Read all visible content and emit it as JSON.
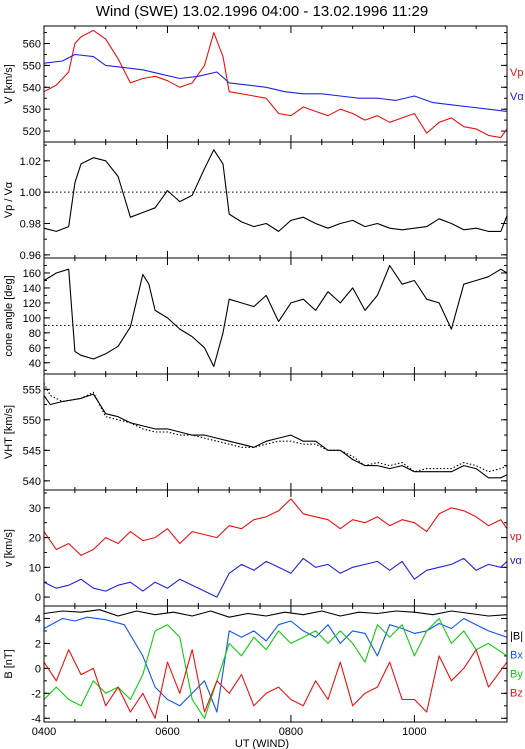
{
  "title": "Wind (SWE)    13.02.1996   04:00 - 13.02.1996   11:29",
  "xlabel": "UT (WIND)",
  "x_ticks": [
    "0400",
    "0600",
    "0800",
    "1000"
  ],
  "colors": {
    "red": "#ee1111",
    "blue": "#2222dd",
    "lightblue": "#1155ee",
    "green": "#11cc11",
    "black": "#000000"
  },
  "chart_data": [
    {
      "type": "line",
      "ylabel": "V [km/s]",
      "xlim": [
        4.0,
        11.5
      ],
      "ylim": [
        515,
        568
      ],
      "y_ticks": [
        520,
        530,
        540,
        550,
        560
      ],
      "legend_placement": "right",
      "series": [
        {
          "name": "Vp",
          "color": "red",
          "style": "solid",
          "x": [
            4.0,
            4.2,
            4.4,
            4.5,
            4.6,
            4.8,
            5.0,
            5.2,
            5.4,
            5.6,
            5.8,
            6.0,
            6.2,
            6.4,
            6.6,
            6.75,
            6.9,
            7.0,
            7.2,
            7.4,
            7.6,
            7.8,
            8.0,
            8.2,
            8.4,
            8.6,
            8.8,
            9.0,
            9.2,
            9.4,
            9.6,
            9.8,
            10.0,
            10.2,
            10.4,
            10.6,
            10.8,
            11.0,
            11.2,
            11.4,
            11.5
          ],
          "values": [
            538,
            541,
            547,
            560,
            563,
            566,
            562,
            553,
            542,
            544,
            545,
            543,
            540,
            542,
            550,
            565,
            554,
            538,
            537,
            536,
            535,
            528,
            527,
            531,
            529,
            527,
            530,
            528,
            525,
            527,
            524,
            526,
            528,
            519,
            524,
            526,
            522,
            521,
            518,
            517,
            521
          ]
        },
        {
          "name": "Vα",
          "color": "blue",
          "style": "solid",
          "x": [
            4.0,
            4.3,
            4.5,
            4.8,
            5.0,
            5.3,
            5.6,
            5.9,
            6.2,
            6.5,
            6.8,
            7.0,
            7.3,
            7.6,
            7.9,
            8.2,
            8.5,
            8.8,
            9.1,
            9.4,
            9.7,
            10.0,
            10.3,
            10.6,
            10.9,
            11.2,
            11.5
          ],
          "values": [
            551,
            552,
            555,
            554,
            550,
            549,
            548,
            546,
            544,
            545,
            547,
            542,
            541,
            540,
            538,
            537,
            537,
            536,
            535,
            535,
            534,
            536,
            533,
            532,
            531,
            530,
            529
          ]
        }
      ],
      "legend": [
        "Vp",
        "Vα"
      ]
    },
    {
      "type": "line",
      "ylabel": "Vp / Vα",
      "xlim": [
        4.0,
        11.5
      ],
      "ylim": [
        0.958,
        1.032
      ],
      "y_ticks": [
        0.96,
        0.98,
        1.0,
        1.02
      ],
      "ref_line": 1.0,
      "series": [
        {
          "color": "black",
          "style": "solid",
          "x": [
            4.0,
            4.2,
            4.4,
            4.5,
            4.6,
            4.8,
            5.0,
            5.2,
            5.4,
            5.6,
            5.8,
            6.0,
            6.2,
            6.4,
            6.6,
            6.75,
            6.9,
            7.0,
            7.2,
            7.4,
            7.6,
            7.8,
            8.0,
            8.2,
            8.4,
            8.6,
            8.8,
            9.0,
            9.2,
            9.4,
            9.6,
            9.8,
            10.0,
            10.2,
            10.4,
            10.6,
            10.8,
            11.0,
            11.2,
            11.4,
            11.5
          ],
          "values": [
            0.977,
            0.975,
            0.978,
            1.006,
            1.018,
            1.022,
            1.02,
            1.01,
            0.984,
            0.987,
            0.99,
            1.001,
            0.994,
            0.998,
            1.015,
            1.027,
            1.018,
            0.986,
            0.981,
            0.978,
            0.98,
            0.975,
            0.982,
            0.984,
            0.98,
            0.977,
            0.98,
            0.982,
            0.978,
            0.98,
            0.977,
            0.976,
            0.977,
            0.978,
            0.983,
            0.98,
            0.976,
            0.977,
            0.975,
            0.975,
            0.985
          ]
        }
      ]
    },
    {
      "type": "line",
      "ylabel": "cone angle [deg]",
      "xlim": [
        4.0,
        11.5
      ],
      "ylim": [
        25,
        180
      ],
      "y_ticks": [
        40,
        60,
        80,
        100,
        120,
        140,
        160
      ],
      "ref_line": 90,
      "series": [
        {
          "color": "black",
          "style": "solid",
          "x": [
            4.0,
            4.2,
            4.4,
            4.5,
            4.6,
            4.8,
            5.0,
            5.2,
            5.4,
            5.6,
            5.7,
            5.8,
            6.0,
            6.2,
            6.4,
            6.6,
            6.75,
            6.9,
            7.0,
            7.2,
            7.4,
            7.6,
            7.8,
            8.0,
            8.2,
            8.4,
            8.6,
            8.8,
            9.0,
            9.2,
            9.4,
            9.6,
            9.8,
            10.0,
            10.2,
            10.4,
            10.6,
            10.8,
            11.0,
            11.2,
            11.4,
            11.5
          ],
          "values": [
            150,
            160,
            165,
            55,
            50,
            45,
            52,
            62,
            88,
            158,
            145,
            110,
            100,
            85,
            75,
            60,
            35,
            80,
            125,
            120,
            115,
            130,
            95,
            120,
            125,
            110,
            135,
            120,
            140,
            110,
            130,
            170,
            145,
            150,
            125,
            120,
            85,
            145,
            150,
            155,
            165,
            160
          ]
        }
      ]
    },
    {
      "type": "line",
      "ylabel": "VHT [km/s]",
      "xlim": [
        4.0,
        11.5
      ],
      "ylim": [
        538.5,
        557.5
      ],
      "y_ticks": [
        540,
        545,
        550,
        555
      ],
      "series": [
        {
          "color": "black",
          "style": "solid",
          "x": [
            4.0,
            4.1,
            4.3,
            4.6,
            4.8,
            5.0,
            5.2,
            5.4,
            5.6,
            5.8,
            6.0,
            6.2,
            6.4,
            6.6,
            6.8,
            7.0,
            7.2,
            7.4,
            7.6,
            7.8,
            8.0,
            8.2,
            8.4,
            8.6,
            8.8,
            9.0,
            9.2,
            9.4,
            9.6,
            9.8,
            10.0,
            10.2,
            10.4,
            10.6,
            10.8,
            11.0,
            11.2,
            11.4,
            11.5
          ],
          "values": [
            554,
            552.5,
            553,
            553.5,
            554.2,
            551,
            550.5,
            549.5,
            549,
            548.5,
            548.5,
            548,
            547.5,
            547.5,
            547,
            546.5,
            546,
            545.5,
            546.5,
            547,
            547.5,
            546.5,
            546.5,
            545,
            545,
            543.5,
            542.5,
            542.5,
            542,
            542.5,
            541.5,
            541.5,
            541.5,
            541.5,
            542.5,
            542,
            540.5,
            540.5,
            541
          ]
        },
        {
          "color": "black",
          "style": "dotted",
          "x": [
            4.0,
            4.1,
            4.3,
            4.6,
            4.8,
            5.0,
            5.2,
            5.4,
            5.6,
            5.8,
            6.0,
            6.2,
            6.4,
            6.6,
            6.8,
            7.0,
            7.2,
            7.4,
            7.6,
            7.8,
            8.0,
            8.2,
            8.4,
            8.6,
            8.8,
            9.0,
            9.2,
            9.4,
            9.6,
            9.8,
            10.0,
            10.2,
            10.4,
            10.6,
            10.8,
            11.0,
            11.2,
            11.4,
            11.5
          ],
          "values": [
            556,
            554,
            553,
            553.5,
            554.5,
            550.5,
            550,
            549.5,
            548.5,
            548,
            548,
            547.5,
            547.5,
            547,
            546.5,
            546,
            545.5,
            545.5,
            546,
            546.5,
            546.5,
            546,
            546,
            545,
            545,
            544,
            542.5,
            543,
            542.5,
            543,
            541.5,
            542,
            542,
            542,
            543,
            542.5,
            541.5,
            542,
            542.5
          ]
        }
      ]
    },
    {
      "type": "line",
      "ylabel": "v [km/s]",
      "xlim": [
        4.0,
        11.5
      ],
      "ylim": [
        -3,
        36
      ],
      "y_ticks": [
        0,
        10,
        20,
        30
      ],
      "legend_placement": "right",
      "series": [
        {
          "name": "vp",
          "color": "red",
          "style": "solid",
          "x": [
            4.0,
            4.2,
            4.4,
            4.6,
            4.8,
            5.0,
            5.2,
            5.4,
            5.6,
            5.8,
            6.0,
            6.2,
            6.4,
            6.6,
            6.8,
            7.0,
            7.2,
            7.4,
            7.6,
            7.8,
            8.0,
            8.2,
            8.4,
            8.6,
            8.8,
            9.0,
            9.2,
            9.4,
            9.6,
            9.8,
            10.0,
            10.2,
            10.4,
            10.6,
            10.8,
            11.0,
            11.2,
            11.4,
            11.5
          ],
          "values": [
            22,
            16,
            18,
            14,
            16,
            20,
            18,
            22,
            19,
            20,
            23,
            18,
            22,
            21,
            20,
            24,
            23,
            26,
            27,
            29,
            33,
            28,
            27,
            26,
            23,
            26,
            25,
            27,
            24,
            26,
            25,
            22,
            28,
            30,
            29,
            27,
            24,
            26,
            23
          ]
        },
        {
          "name": "vα",
          "color": "blue",
          "style": "solid",
          "x": [
            4.0,
            4.2,
            4.4,
            4.6,
            4.8,
            5.0,
            5.2,
            5.4,
            5.6,
            5.8,
            6.0,
            6.2,
            6.4,
            6.6,
            6.8,
            7.0,
            7.2,
            7.4,
            7.6,
            7.8,
            8.0,
            8.2,
            8.4,
            8.6,
            8.8,
            9.0,
            9.2,
            9.4,
            9.6,
            9.8,
            10.0,
            10.2,
            10.4,
            10.6,
            10.8,
            11.0,
            11.2,
            11.4,
            11.5
          ],
          "values": [
            5,
            3,
            4,
            6,
            3,
            2,
            4,
            5,
            2,
            5,
            3,
            6,
            4,
            2,
            0,
            8,
            11,
            9,
            12,
            10,
            8,
            13,
            10,
            11,
            8,
            10,
            11,
            12,
            9,
            12,
            6,
            9,
            10,
            11,
            13,
            9,
            11,
            10,
            12
          ]
        }
      ],
      "legend": [
        "vp",
        "vα"
      ]
    },
    {
      "type": "line",
      "ylabel": "B [nT]",
      "xlim": [
        4.0,
        11.5
      ],
      "ylim": [
        -4.3,
        5.0
      ],
      "y_ticks": [
        -4,
        -2,
        0,
        2,
        4
      ],
      "legend_placement": "right",
      "series": [
        {
          "name": "|B|",
          "color": "black",
          "style": "solid",
          "x": [
            4.0,
            4.3,
            4.6,
            4.9,
            5.2,
            5.5,
            5.8,
            6.1,
            6.4,
            6.7,
            7.0,
            7.3,
            7.6,
            7.9,
            8.2,
            8.5,
            8.8,
            9.1,
            9.4,
            9.7,
            10.0,
            10.3,
            10.6,
            10.9,
            11.2,
            11.5
          ],
          "values": [
            4.4,
            4.6,
            4.5,
            4.7,
            4.2,
            4.6,
            4.3,
            4.5,
            4.2,
            4.6,
            4.1,
            4.4,
            4.2,
            4.5,
            4.3,
            4.6,
            4.2,
            4.5,
            4.4,
            4.6,
            4.5,
            4.3,
            4.6,
            4.4,
            4.2,
            4.3
          ]
        },
        {
          "name": "Bx",
          "color": "lightblue",
          "style": "solid",
          "x": [
            4.0,
            4.3,
            4.5,
            4.7,
            5.0,
            5.3,
            5.6,
            5.8,
            6.0,
            6.2,
            6.4,
            6.6,
            6.8,
            7.0,
            7.2,
            7.4,
            7.6,
            7.8,
            8.0,
            8.2,
            8.4,
            8.6,
            8.8,
            9.0,
            9.2,
            9.4,
            9.6,
            9.8,
            10.0,
            10.2,
            10.4,
            10.6,
            10.8,
            11.0,
            11.2,
            11.5
          ],
          "values": [
            3.2,
            4.0,
            3.8,
            4.1,
            3.9,
            3.5,
            1.0,
            -1.5,
            -2.5,
            -3.0,
            -2.0,
            -1.0,
            -3.5,
            3.0,
            2.5,
            3.0,
            2.2,
            3.5,
            3.8,
            3.0,
            2.5,
            3.5,
            2.0,
            3.0,
            2.8,
            1.0,
            3.5,
            3.2,
            2.8,
            3.0,
            3.6,
            3.2,
            4.0,
            3.5,
            3.0,
            2.5
          ]
        },
        {
          "name": "By",
          "color": "green",
          "style": "solid",
          "x": [
            4.0,
            4.2,
            4.4,
            4.6,
            4.8,
            5.0,
            5.2,
            5.4,
            5.6,
            5.8,
            6.0,
            6.2,
            6.4,
            6.6,
            6.8,
            7.0,
            7.2,
            7.4,
            7.6,
            7.8,
            8.0,
            8.2,
            8.4,
            8.6,
            8.8,
            9.0,
            9.2,
            9.4,
            9.6,
            9.8,
            10.0,
            10.2,
            10.4,
            10.6,
            10.8,
            11.0,
            11.2,
            11.5
          ],
          "values": [
            -2.5,
            -1.5,
            -2.5,
            -3.0,
            -1.0,
            -2.0,
            -1.5,
            -2.5,
            -0.5,
            3.0,
            3.5,
            2.5,
            -2.5,
            -4.0,
            -1.0,
            2.0,
            1.0,
            2.5,
            1.5,
            3.0,
            2.0,
            2.5,
            3.0,
            2.0,
            3.0,
            2.0,
            0.5,
            3.5,
            2.5,
            3.5,
            1.0,
            3.0,
            4.0,
            2.0,
            3.0,
            1.5,
            2.0,
            1.0
          ]
        },
        {
          "name": "Bz",
          "color": "red",
          "style": "solid",
          "x": [
            4.0,
            4.2,
            4.4,
            4.6,
            4.8,
            5.0,
            5.2,
            5.4,
            5.6,
            5.8,
            6.0,
            6.2,
            6.4,
            6.6,
            6.8,
            7.0,
            7.2,
            7.4,
            7.6,
            7.8,
            8.0,
            8.2,
            8.4,
            8.6,
            8.8,
            9.0,
            9.2,
            9.4,
            9.6,
            9.8,
            10.0,
            10.2,
            10.4,
            10.6,
            10.8,
            11.0,
            11.2,
            11.5
          ],
          "values": [
            0.5,
            -1.0,
            1.5,
            -0.5,
            0.0,
            -3.0,
            -1.5,
            -3.5,
            -2.0,
            -4.0,
            0.5,
            -2.0,
            1.5,
            -3.5,
            -1.0,
            -2.0,
            -0.5,
            -3.0,
            -2.0,
            -1.5,
            -2.5,
            -3.0,
            -1.0,
            -2.5,
            0.5,
            -3.0,
            -2.0,
            -1.5,
            0.5,
            -2.5,
            -2.5,
            -3.5,
            1.0,
            -1.0,
            0.0,
            1.5,
            -1.5,
            0.5
          ]
        }
      ],
      "legend": [
        "|B|",
        "Bx",
        "By",
        "Bz"
      ]
    }
  ]
}
